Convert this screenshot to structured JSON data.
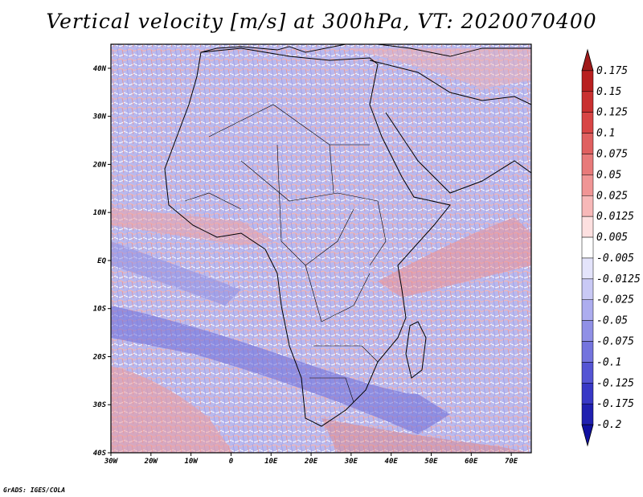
{
  "title": "Vertical velocity [m/s] at 300hPa, VT: 2020070400",
  "credit": "GrADS: IGES/COLA",
  "map": {
    "region": "Africa",
    "lon_range": [
      -30,
      75
    ],
    "lat_range": [
      -40,
      45
    ],
    "lat_labels": [
      "40N",
      "30N",
      "20N",
      "10N",
      "EQ",
      "10S",
      "20S",
      "30S",
      "40S"
    ],
    "lat_values": [
      40,
      30,
      20,
      10,
      0,
      -10,
      -20,
      -30,
      -40
    ],
    "lon_labels": [
      "30W",
      "20W",
      "10W",
      "0",
      "10E",
      "20E",
      "30E",
      "40E",
      "50E",
      "60E",
      "70E"
    ],
    "lon_values": [
      -30,
      -20,
      -10,
      0,
      10,
      20,
      30,
      40,
      50,
      60,
      70
    ]
  },
  "colorbar": {
    "labels": [
      "0.175",
      "0.15",
      "0.125",
      "0.1",
      "0.075",
      "0.05",
      "0.025",
      "0.0125",
      "0.005",
      "-0.005",
      "-0.0125",
      "-0.025",
      "-0.05",
      "-0.075",
      "-0.1",
      "-0.125",
      "-0.175",
      "-0.2"
    ],
    "colors": [
      "#a01a1a",
      "#b82020",
      "#c93030",
      "#d84545",
      "#e06060",
      "#e87a7a",
      "#f09595",
      "#f7b8b8",
      "#fde0e0",
      "#ffffff",
      "#e4e4fb",
      "#c9c9f5",
      "#adadef",
      "#9090e6",
      "#7474de",
      "#5555d4",
      "#3838c6",
      "#2020b0",
      "#1010a0"
    ]
  }
}
